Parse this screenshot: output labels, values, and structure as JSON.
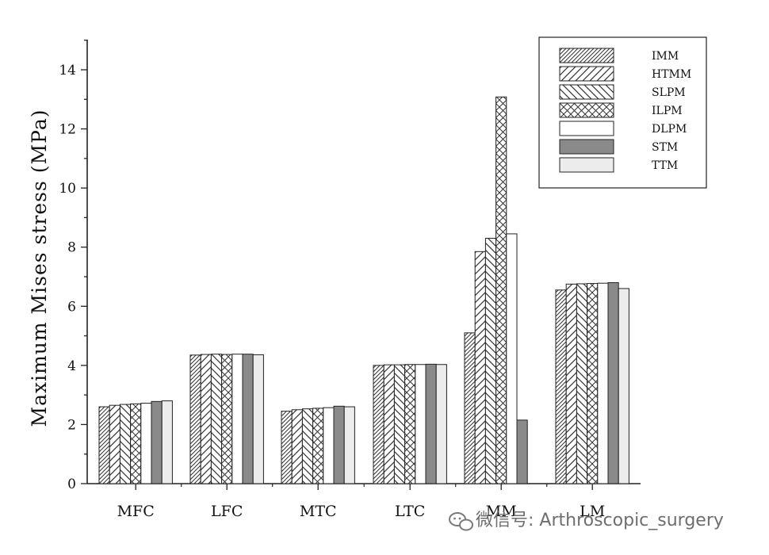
{
  "chart_data": {
    "type": "bar",
    "categories": [
      "MFC",
      "LFC",
      "MTC",
      "LTC",
      "MM",
      "LM"
    ],
    "series": [
      {
        "name": "IMM",
        "pattern": "diag-fine",
        "values": [
          2.6,
          4.35,
          2.45,
          4.0,
          5.1,
          6.55
        ]
      },
      {
        "name": "HTMM",
        "pattern": "diag-right",
        "values": [
          2.65,
          4.37,
          2.5,
          4.02,
          7.85,
          6.75
        ]
      },
      {
        "name": "SLPM",
        "pattern": "diag-left",
        "values": [
          2.68,
          4.38,
          2.53,
          4.02,
          8.3,
          6.76
        ]
      },
      {
        "name": "ILPM",
        "pattern": "cross",
        "values": [
          2.7,
          4.37,
          2.55,
          4.03,
          13.08,
          6.77
        ]
      },
      {
        "name": "DLPM",
        "pattern": "blank",
        "values": [
          2.72,
          4.38,
          2.57,
          4.03,
          8.45,
          6.78
        ]
      },
      {
        "name": "STM",
        "pattern": "solid-dark",
        "values": [
          2.78,
          4.38,
          2.62,
          4.04,
          2.15,
          6.8
        ]
      },
      {
        "name": "TTM",
        "pattern": "solid-light",
        "values": [
          2.8,
          4.36,
          2.6,
          4.03,
          null,
          6.6
        ]
      }
    ],
    "ylabel": "Maximum Mises stress (MPa)",
    "ylim": [
      0,
      15
    ],
    "yticks": [
      0,
      2,
      4,
      6,
      8,
      10,
      12,
      14
    ],
    "legend_position": "top-right",
    "grid": false,
    "colors": {
      "dark": "#8a8a8a",
      "light": "#ececec",
      "stroke": "#222222"
    }
  },
  "watermark": {
    "icon": "wechat-icon",
    "text": "微信号: Arthroscopic_surgery"
  }
}
